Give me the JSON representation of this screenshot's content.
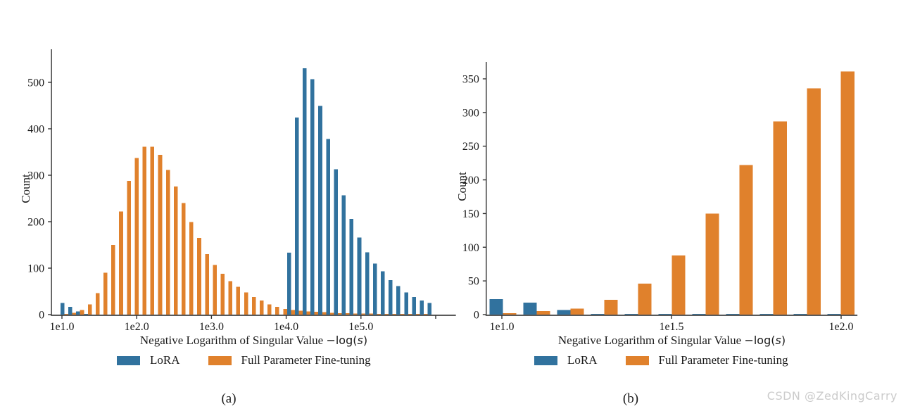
{
  "watermark": "CSDN @ZedKingCarry",
  "chart_data": [
    {
      "type": "bar",
      "subtype": "histogram-dodged",
      "caption": "(a)",
      "xlabel": "Negative Logarithm of Singular Value",
      "xlabel_math": {
        "pre": "−log(",
        "var": "s",
        "post": ")"
      },
      "ylabel": "Count",
      "x_scale": "log10",
      "grid": false,
      "legend_position": "lower center",
      "y_ticks": [
        0,
        100,
        200,
        300,
        400,
        500
      ],
      "ylim": [
        0,
        571
      ],
      "x_ticks": [
        {
          "log10": 1.0,
          "label": "1e1.0"
        },
        {
          "log10": 2.0,
          "label": "1e2.0"
        },
        {
          "log10": 3.0,
          "label": "1e3.0"
        },
        {
          "log10": 4.0,
          "label": "1e4.0"
        },
        {
          "log10": 5.0,
          "label": "1e5.0"
        },
        {
          "log10": 6.0,
          "label": ""
        }
      ],
      "x_range_log10": [
        0.86,
        6.27
      ],
      "bins": {
        "log10_start": 0.981,
        "log10_width": 0.1045
      },
      "series": [
        {
          "name": "LoRA",
          "color": "#31729E",
          "values": [
            25,
            17,
            7,
            1,
            0,
            0,
            0,
            0,
            0,
            0,
            0,
            0,
            0,
            0,
            0,
            0,
            0,
            0,
            0,
            0,
            0,
            0,
            0,
            0,
            0,
            0,
            0,
            0,
            0,
            133,
            424,
            530,
            507,
            449,
            378,
            313,
            257,
            206,
            166,
            134,
            110,
            93,
            74,
            61,
            48,
            38,
            30,
            25
          ]
        },
        {
          "name": "Full Parameter Fine-tuning",
          "color": "#E0812C",
          "values": [
            1,
            4,
            10,
            22,
            46,
            90,
            150,
            222,
            288,
            337,
            361,
            361,
            344,
            311,
            276,
            240,
            199,
            165,
            130,
            107,
            88,
            72,
            60,
            48,
            38,
            30,
            22,
            17,
            12,
            10,
            8,
            7,
            6,
            5,
            4,
            3,
            3,
            2,
            2,
            2,
            1,
            1,
            1,
            1,
            1,
            1,
            1,
            0
          ]
        }
      ]
    },
    {
      "type": "bar",
      "subtype": "histogram-dodged",
      "caption": "(b)",
      "xlabel": "Negative Logarithm of Singular Value",
      "xlabel_math": {
        "pre": "−log(",
        "var": "s",
        "post": ")"
      },
      "ylabel": "Count",
      "x_scale": "log10",
      "grid": false,
      "legend_position": "lower center",
      "y_ticks": [
        0,
        50,
        100,
        150,
        200,
        250,
        300,
        350
      ],
      "ylim": [
        0,
        375
      ],
      "x_ticks": [
        {
          "log10": 1.0,
          "label": "1e1.0"
        },
        {
          "log10": 1.5,
          "label": "1e1.5"
        },
        {
          "log10": 2.0,
          "label": "1e2.0"
        }
      ],
      "x_range_log10": [
        0.954,
        2.048
      ],
      "bins": {
        "log10_start": 0.9533,
        "log10_width": 0.0996
      },
      "series": [
        {
          "name": "LoRA",
          "color": "#31729E",
          "values": [
            23,
            18,
            7,
            1,
            1,
            1,
            1,
            1,
            1,
            1,
            1
          ]
        },
        {
          "name": "Full Parameter Fine-tuning",
          "color": "#E0812C",
          "values": [
            2,
            5,
            9,
            22,
            46,
            88,
            150,
            222,
            287,
            336,
            361
          ]
        }
      ]
    }
  ]
}
